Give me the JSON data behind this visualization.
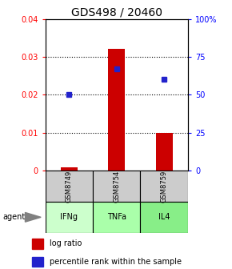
{
  "title": "GDS498 / 20460",
  "samples": [
    "GSM8749",
    "GSM8754",
    "GSM8759"
  ],
  "agents": [
    "IFNg",
    "TNFa",
    "IL4"
  ],
  "log_ratios": [
    0.001,
    0.032,
    0.01
  ],
  "percentile_ranks_pct": [
    50,
    67,
    60
  ],
  "ylim_left": [
    0,
    0.04
  ],
  "ylim_right": [
    0,
    100
  ],
  "yticks_left": [
    0,
    0.01,
    0.02,
    0.03,
    0.04
  ],
  "ytick_labels_left": [
    "0",
    "0.01",
    "0.02",
    "0.03",
    "0.04"
  ],
  "ytick_labels_right": [
    "0",
    "25",
    "50",
    "75",
    "100%"
  ],
  "bar_color": "#cc0000",
  "dot_color": "#2222cc",
  "box_header_color": "#cccccc",
  "agent_colors": [
    "#ccffcc",
    "#aaffaa",
    "#88ee88"
  ],
  "title_fontsize": 10,
  "legend_labels": [
    "log ratio",
    "percentile rank within the sample"
  ],
  "bar_width": 0.35
}
